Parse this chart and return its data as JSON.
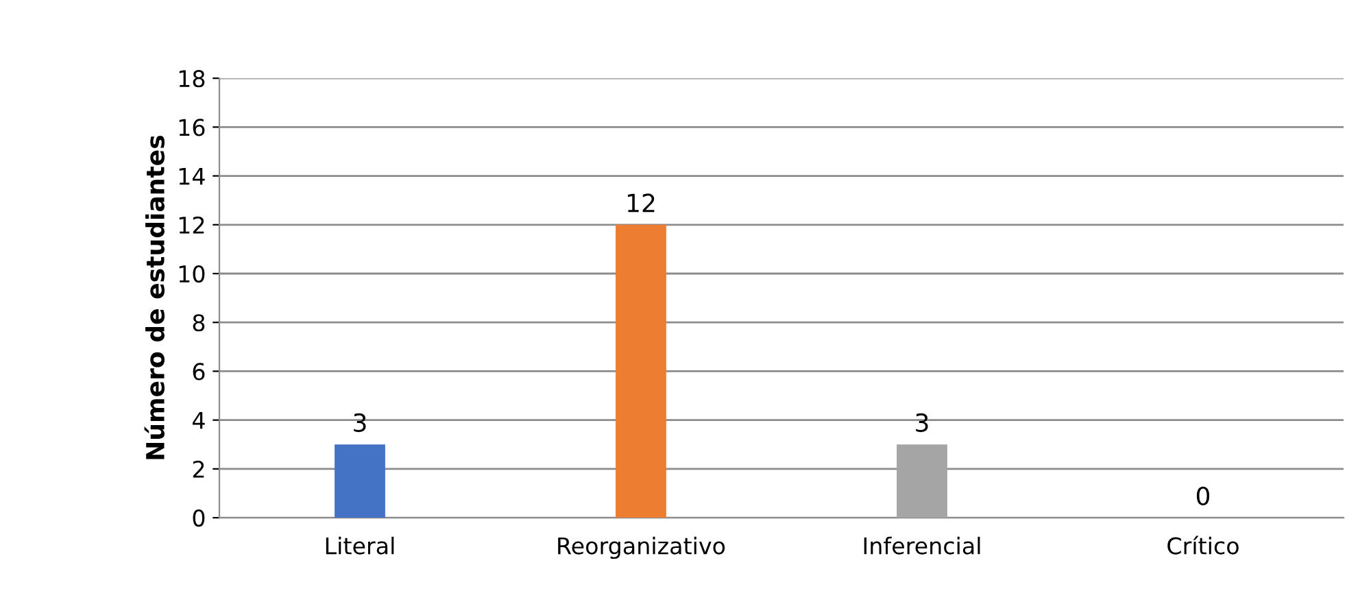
{
  "chart_data": {
    "type": "bar",
    "ylabel": "Número de estudiantes",
    "categories": [
      "Literal",
      "Reorganizativo",
      "Inferencial",
      "Crítico"
    ],
    "values": [
      3,
      12,
      3,
      0
    ],
    "colors": [
      "#4472c4",
      "#ed7d31",
      "#a5a5a5",
      "#ffc000"
    ],
    "ylim": [
      0,
      18
    ],
    "yticks": [
      0,
      2,
      4,
      6,
      8,
      10,
      12,
      14,
      16,
      18
    ],
    "grid": "y",
    "data_labels": true
  }
}
